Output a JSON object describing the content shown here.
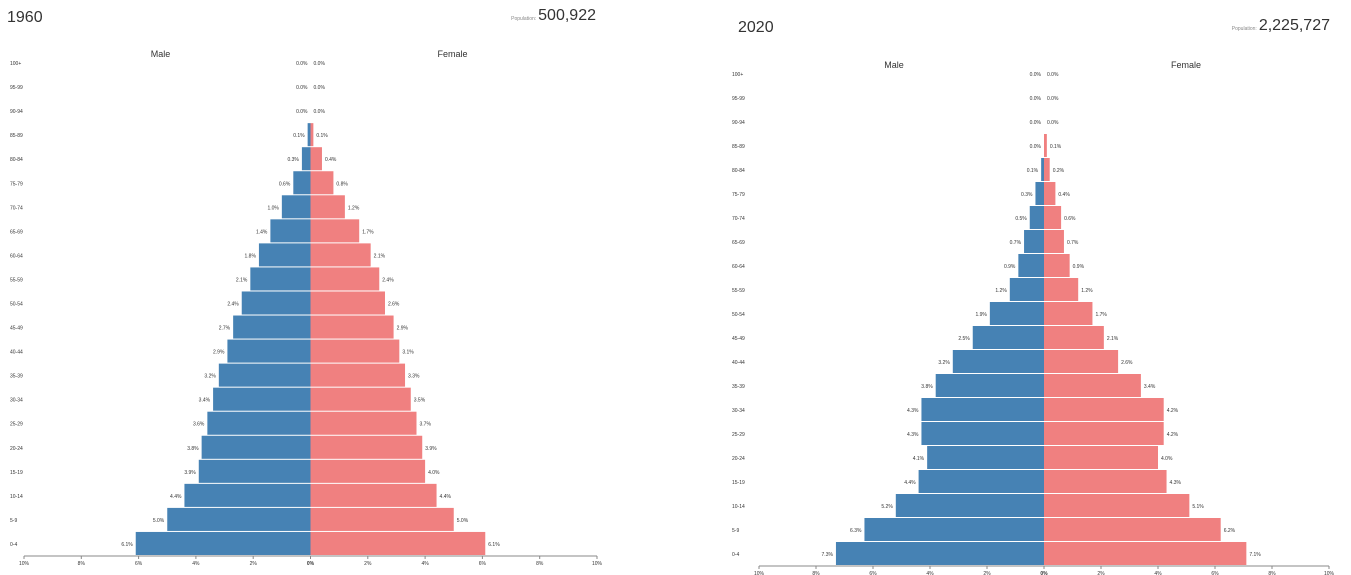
{
  "colors": {
    "male": "#4682b4",
    "female": "#f08080",
    "axis": "#888888",
    "text": "#333333"
  },
  "chart_data": [
    {
      "type": "bar",
      "orientation": "horizontal-pyramid",
      "year": "1960",
      "population_label": "Population:",
      "population": "500,922",
      "categories": [
        "0-4",
        "5-9",
        "10-14",
        "15-19",
        "20-24",
        "25-29",
        "30-34",
        "35-39",
        "40-44",
        "45-49",
        "50-54",
        "55-59",
        "60-64",
        "65-69",
        "70-74",
        "75-79",
        "80-84",
        "85-89",
        "90-94",
        "95-99",
        "100+"
      ],
      "series": [
        {
          "name": "Male",
          "values": [
            6.1,
            5.0,
            4.4,
            3.9,
            3.8,
            3.6,
            3.4,
            3.2,
            2.9,
            2.7,
            2.4,
            2.1,
            1.8,
            1.4,
            1.0,
            0.6,
            0.3,
            0.1,
            0.0,
            0.0,
            0.0
          ]
        },
        {
          "name": "Female",
          "values": [
            6.1,
            5.0,
            4.4,
            4.0,
            3.9,
            3.7,
            3.5,
            3.3,
            3.1,
            2.9,
            2.6,
            2.4,
            2.1,
            1.7,
            1.2,
            0.8,
            0.4,
            0.1,
            0.0,
            0.0,
            0.0
          ]
        }
      ],
      "x_ticks": [
        "10%",
        "8%",
        "6%",
        "4%",
        "2%",
        "0%",
        "2%",
        "4%",
        "6%",
        "8%",
        "10%"
      ],
      "xlim": [
        -10,
        10
      ]
    },
    {
      "type": "bar",
      "orientation": "horizontal-pyramid",
      "year": "2020",
      "population_label": "Population:",
      "population": "2,225,727",
      "categories": [
        "0-4",
        "5-9",
        "10-14",
        "15-19",
        "20-24",
        "25-29",
        "30-34",
        "35-39",
        "40-44",
        "45-49",
        "50-54",
        "55-59",
        "60-64",
        "65-69",
        "70-74",
        "75-79",
        "80-84",
        "85-89",
        "90-94",
        "95-99",
        "100+"
      ],
      "series": [
        {
          "name": "Male",
          "values": [
            7.3,
            6.3,
            5.2,
            4.4,
            4.1,
            4.3,
            4.3,
            3.8,
            3.2,
            2.5,
            1.9,
            1.2,
            0.9,
            0.7,
            0.5,
            0.3,
            0.1,
            0.0,
            0.0,
            0.0,
            0.0
          ]
        },
        {
          "name": "Female",
          "values": [
            7.1,
            6.2,
            5.1,
            4.3,
            4.0,
            4.2,
            4.2,
            3.4,
            2.6,
            2.1,
            1.7,
            1.2,
            0.9,
            0.7,
            0.6,
            0.4,
            0.2,
            0.1,
            0.0,
            0.0,
            0.0
          ]
        }
      ],
      "x_ticks": [
        "10%",
        "8%",
        "6%",
        "4%",
        "2%",
        "0%",
        "2%",
        "4%",
        "6%",
        "8%",
        "10%"
      ],
      "xlim": [
        -10,
        10
      ]
    }
  ]
}
